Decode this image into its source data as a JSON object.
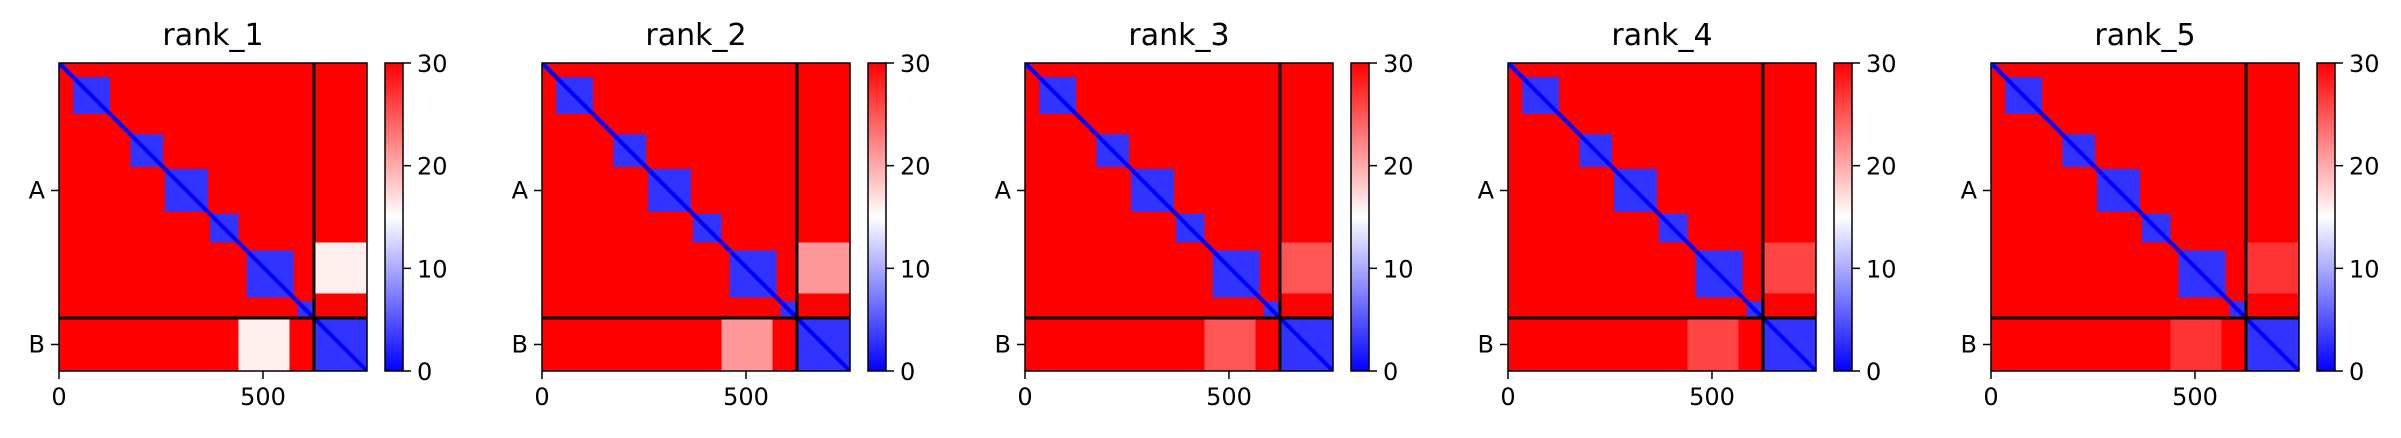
{
  "chart_data": [
    {
      "type": "heatmap",
      "title": "rank_1",
      "chains": [
        {
          "label": "A",
          "start": 0,
          "end": 625
        },
        {
          "label": "B",
          "start": 625,
          "end": 755
        }
      ],
      "x_ticks": [
        0,
        500
      ],
      "xlim": [
        0,
        755
      ],
      "colorbar": {
        "range": [
          0,
          30
        ],
        "ticks": [
          0,
          10,
          20,
          30
        ],
        "colors": [
          "#0000ff",
          "#ffffff",
          "#ff0000"
        ]
      },
      "diagonal_blocks": [
        [
          0,
          15
        ],
        [
          35,
          125
        ],
        [
          175,
          255
        ],
        [
          260,
          365
        ],
        [
          370,
          440
        ],
        [
          460,
          575
        ],
        [
          585,
          625
        ],
        [
          625,
          755
        ]
      ],
      "interchain_band": {
        "range": [
          440,
          565
        ],
        "value": 16
      }
    },
    {
      "type": "heatmap",
      "title": "rank_2",
      "chains": [
        {
          "label": "A",
          "start": 0,
          "end": 625
        },
        {
          "label": "B",
          "start": 625,
          "end": 755
        }
      ],
      "x_ticks": [
        0,
        500
      ],
      "xlim": [
        0,
        755
      ],
      "colorbar": {
        "range": [
          0,
          30
        ],
        "ticks": [
          0,
          10,
          20,
          30
        ],
        "colors": [
          "#0000ff",
          "#ffffff",
          "#ff0000"
        ]
      },
      "diagonal_blocks": [
        [
          0,
          15
        ],
        [
          35,
          125
        ],
        [
          175,
          255
        ],
        [
          260,
          365
        ],
        [
          370,
          440
        ],
        [
          460,
          575
        ],
        [
          585,
          625
        ],
        [
          625,
          755
        ]
      ],
      "interchain_band": {
        "range": [
          440,
          565
        ],
        "value": 21
      }
    },
    {
      "type": "heatmap",
      "title": "rank_3",
      "chains": [
        {
          "label": "A",
          "start": 0,
          "end": 625
        },
        {
          "label": "B",
          "start": 625,
          "end": 755
        }
      ],
      "x_ticks": [
        0,
        500
      ],
      "xlim": [
        0,
        755
      ],
      "colorbar": {
        "range": [
          0,
          30
        ],
        "ticks": [
          0,
          10,
          20,
          30
        ],
        "colors": [
          "#0000ff",
          "#ffffff",
          "#ff0000"
        ]
      },
      "diagonal_blocks": [
        [
          0,
          15
        ],
        [
          35,
          125
        ],
        [
          175,
          255
        ],
        [
          260,
          365
        ],
        [
          370,
          440
        ],
        [
          460,
          575
        ],
        [
          585,
          625
        ],
        [
          625,
          755
        ]
      ],
      "interchain_band": {
        "range": [
          440,
          565
        ],
        "value": 25
      }
    },
    {
      "type": "heatmap",
      "title": "rank_4",
      "chains": [
        {
          "label": "A",
          "start": 0,
          "end": 625
        },
        {
          "label": "B",
          "start": 625,
          "end": 755
        }
      ],
      "x_ticks": [
        0,
        500
      ],
      "xlim": [
        0,
        755
      ],
      "colorbar": {
        "range": [
          0,
          30
        ],
        "ticks": [
          0,
          10,
          20,
          30
        ],
        "colors": [
          "#0000ff",
          "#ffffff",
          "#ff0000"
        ]
      },
      "diagonal_blocks": [
        [
          0,
          15
        ],
        [
          35,
          125
        ],
        [
          175,
          255
        ],
        [
          260,
          365
        ],
        [
          370,
          440
        ],
        [
          460,
          575
        ],
        [
          585,
          625
        ],
        [
          625,
          755
        ]
      ],
      "interchain_band": {
        "range": [
          440,
          565
        ],
        "value": 26
      }
    },
    {
      "type": "heatmap",
      "title": "rank_5",
      "chains": [
        {
          "label": "A",
          "start": 0,
          "end": 625
        },
        {
          "label": "B",
          "start": 625,
          "end": 755
        }
      ],
      "x_ticks": [
        0,
        500
      ],
      "xlim": [
        0,
        755
      ],
      "colorbar": {
        "range": [
          0,
          30
        ],
        "ticks": [
          0,
          10,
          20,
          30
        ],
        "colors": [
          "#0000ff",
          "#ffffff",
          "#ff0000"
        ]
      },
      "diagonal_blocks": [
        [
          0,
          15
        ],
        [
          35,
          125
        ],
        [
          175,
          255
        ],
        [
          260,
          365
        ],
        [
          370,
          440
        ],
        [
          460,
          575
        ],
        [
          585,
          625
        ],
        [
          625,
          755
        ]
      ],
      "interchain_band": {
        "range": [
          440,
          565
        ],
        "value": 27
      }
    }
  ]
}
